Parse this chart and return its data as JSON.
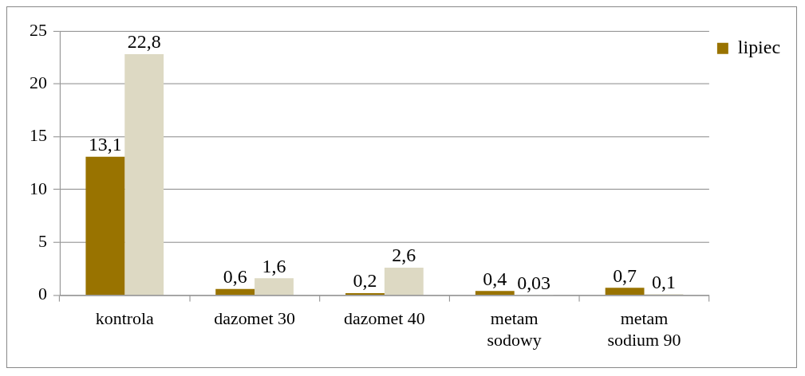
{
  "chart_data": {
    "type": "bar",
    "categories": [
      "kontrola",
      "dazomet 30",
      "dazomet 40",
      "metam sodowy",
      "metam sodium 90"
    ],
    "series": [
      {
        "name": "lipiec",
        "color": "#997300",
        "values": [
          13.1,
          0.6,
          0.2,
          0.4,
          0.7
        ],
        "value_labels": [
          "13,1",
          "0,6",
          "0,2",
          "0,4",
          "0,7"
        ]
      },
      {
        "color": "#ddd9c3",
        "values": [
          22.8,
          1.6,
          2.6,
          0.03,
          0.1
        ],
        "value_labels": [
          "22,8",
          "1,6",
          "2,6",
          "0,03",
          "0,1"
        ]
      }
    ],
    "ylim": [
      0,
      25
    ],
    "yticks": [
      0,
      5,
      10,
      15,
      20,
      25
    ],
    "grid": "y",
    "legend": "top right"
  }
}
